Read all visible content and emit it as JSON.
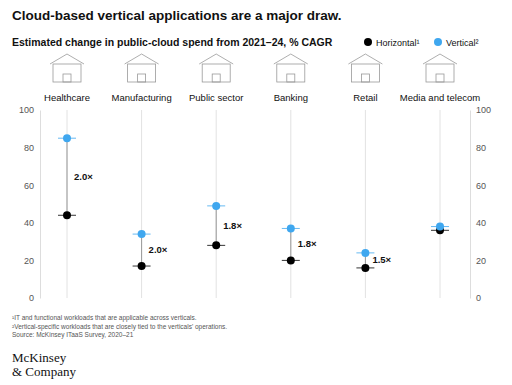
{
  "chart_data": {
    "type": "dumbbell",
    "title": "Cloud-based vertical applications are a major draw.",
    "subtitle": "Estimated change in public-cloud spend from 2021–24, % CAGR",
    "categories": [
      "Healthcare",
      "Manufacturing",
      "Public sector",
      "Banking",
      "Retail",
      "Media and telecom"
    ],
    "series": [
      {
        "name": "Horizontal¹",
        "color": "#000000",
        "marker": "circle",
        "values": [
          44,
          17,
          28,
          20,
          16,
          36
        ]
      },
      {
        "name": "Vertical²",
        "color": "#3fa7ef",
        "marker": "circle",
        "values": [
          85,
          34,
          49,
          37,
          24,
          38
        ]
      }
    ],
    "multipliers": [
      "2.0×",
      "2.0×",
      "1.8×",
      "1.8×",
      "1.5×",
      null
    ],
    "ylim": [
      0,
      100
    ],
    "yticks": [
      0,
      20,
      40,
      60,
      80,
      100
    ],
    "grid": false,
    "legend": "top-right",
    "footnotes": [
      "¹IT and functional workloads that are applicable across verticals.",
      "²Vertical-specific workloads that are closely tied to the verticals' operations.",
      "Source: McKinsey ITaaS Survey, 2020–21"
    ],
    "logo": [
      "McKinsey",
      "& Company"
    ]
  }
}
